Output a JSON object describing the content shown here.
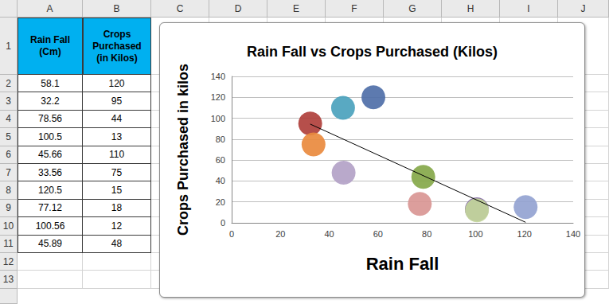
{
  "sheet": {
    "columns": [
      "A",
      "B",
      "C",
      "D",
      "E",
      "F",
      "G",
      "H",
      "I",
      "J"
    ],
    "rows": [
      1,
      2,
      3,
      4,
      5,
      6,
      7,
      8,
      9,
      10,
      11,
      12,
      13
    ],
    "header": [
      "Rain Fall (Cm)",
      "Crops Purchased (in Kilos)"
    ],
    "data": [
      [
        58.1,
        120
      ],
      [
        32.2,
        95
      ],
      [
        78.56,
        44
      ],
      [
        100.5,
        13
      ],
      [
        45.66,
        110
      ],
      [
        33.56,
        75
      ],
      [
        120.5,
        15
      ],
      [
        77.12,
        18
      ],
      [
        100.56,
        12
      ],
      [
        45.89,
        48
      ]
    ]
  },
  "chart_data": {
    "type": "scatter",
    "title": "Rain Fall vs Crops Purchased (Kilos)",
    "x_label": "Rain Fall",
    "y_label": "Crops Purchased in kilos",
    "series": [
      {
        "type": "scatter",
        "marker": "circle",
        "x": [
          58.1,
          32.2,
          78.56,
          100.5,
          45.66,
          33.56,
          120.5,
          77.12,
          100.56,
          45.89
        ],
        "values": [
          120,
          95,
          44,
          13,
          110,
          75,
          15,
          18,
          12,
          48
        ],
        "colors": [
          "#4f6fa8",
          "#b0403c",
          "#86a84a",
          "#8064a2",
          "#4ba2bd",
          "#e98a3e",
          "#94a3d1",
          "#d99694",
          "#c3d69b",
          "#b3a2c7"
        ]
      },
      {
        "type": "line",
        "line_style": "solid",
        "color": "#000000",
        "x": [
          32.2,
          120.5
        ],
        "values": [
          94.4,
          0.5
        ]
      }
    ],
    "xlim": [
      0,
      140
    ],
    "xticks": [
      0,
      20,
      40,
      60,
      80,
      100,
      120,
      140
    ],
    "ylim": [
      0,
      140
    ],
    "yticks": [
      0,
      20,
      40,
      60,
      80,
      100,
      120,
      140
    ],
    "grid": true
  }
}
